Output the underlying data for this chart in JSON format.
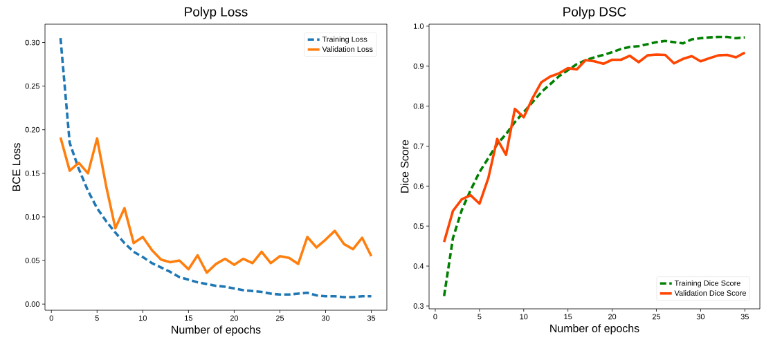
{
  "chart_data": [
    {
      "type": "line",
      "title": "Polyp Loss",
      "xlabel": "Number of epochs",
      "ylabel": "BCE Loss",
      "x": [
        1,
        2,
        3,
        4,
        5,
        6,
        7,
        8,
        9,
        10,
        11,
        12,
        13,
        14,
        15,
        16,
        17,
        18,
        19,
        20,
        21,
        22,
        23,
        24,
        25,
        26,
        27,
        28,
        29,
        30,
        31,
        32,
        33,
        34,
        35
      ],
      "series": [
        {
          "name": "Training Loss",
          "color": "#1f77b4",
          "line_style": "dashed",
          "values": [
            0.305,
            0.185,
            0.155,
            0.13,
            0.11,
            0.095,
            0.082,
            0.07,
            0.06,
            0.054,
            0.047,
            0.042,
            0.037,
            0.031,
            0.028,
            0.025,
            0.023,
            0.021,
            0.02,
            0.018,
            0.016,
            0.015,
            0.014,
            0.012,
            0.011,
            0.011,
            0.012,
            0.013,
            0.01,
            0.009,
            0.009,
            0.008,
            0.008,
            0.009,
            0.009
          ]
        },
        {
          "name": "Validation Loss",
          "color": "#ff7f0e",
          "line_style": "solid",
          "values": [
            0.191,
            0.153,
            0.162,
            0.15,
            0.19,
            0.135,
            0.087,
            0.11,
            0.07,
            0.077,
            0.062,
            0.051,
            0.048,
            0.05,
            0.04,
            0.056,
            0.036,
            0.046,
            0.052,
            0.045,
            0.052,
            0.047,
            0.06,
            0.047,
            0.055,
            0.053,
            0.046,
            0.077,
            0.065,
            0.074,
            0.084,
            0.069,
            0.063,
            0.076,
            0.055
          ]
        }
      ],
      "xlim": [
        -0.7,
        36.7
      ],
      "ylim": [
        -0.007,
        0.321
      ],
      "xticks": [
        0,
        5,
        10,
        15,
        20,
        25,
        30,
        35
      ],
      "yticks": [
        {
          "value": 0,
          "label": "0.00"
        },
        {
          "value": 0.05,
          "label": "0.05"
        },
        {
          "value": 0.1,
          "label": "0.10"
        },
        {
          "value": 0.15,
          "label": "0.15"
        },
        {
          "value": 0.2,
          "label": "0.20"
        },
        {
          "value": 0.25,
          "label": "0.25"
        },
        {
          "value": 0.3,
          "label": "0.30"
        }
      ],
      "grid": false,
      "legend": "top right",
      "marker": "none"
    },
    {
      "type": "line",
      "title": "Polyp DSC",
      "xlabel": "Number of epochs",
      "ylabel": "Dice Score",
      "x": [
        1,
        2,
        3,
        4,
        5,
        6,
        7,
        8,
        9,
        10,
        11,
        12,
        13,
        14,
        15,
        16,
        17,
        18,
        19,
        20,
        21,
        22,
        23,
        24,
        25,
        26,
        27,
        28,
        29,
        30,
        31,
        32,
        33,
        34,
        35
      ],
      "series": [
        {
          "name": "Training Dice Score",
          "color": "#008000",
          "line_style": "dashed",
          "values": [
            0.325,
            0.47,
            0.54,
            0.59,
            0.635,
            0.67,
            0.705,
            0.73,
            0.76,
            0.785,
            0.81,
            0.835,
            0.855,
            0.875,
            0.89,
            0.905,
            0.915,
            0.922,
            0.928,
            0.935,
            0.943,
            0.948,
            0.95,
            0.955,
            0.96,
            0.963,
            0.96,
            0.957,
            0.967,
            0.97,
            0.972,
            0.973,
            0.973,
            0.97,
            0.972
          ]
        },
        {
          "name": "Validation Dice Score",
          "color": "#ff4500",
          "line_style": "solid",
          "values": [
            0.46,
            0.538,
            0.567,
            0.577,
            0.556,
            0.62,
            0.718,
            0.678,
            0.793,
            0.772,
            0.82,
            0.86,
            0.874,
            0.882,
            0.895,
            0.892,
            0.915,
            0.912,
            0.906,
            0.916,
            0.916,
            0.926,
            0.91,
            0.927,
            0.929,
            0.928,
            0.907,
            0.918,
            0.925,
            0.912,
            0.92,
            0.927,
            0.928,
            0.922,
            0.934
          ]
        }
      ],
      "xlim": [
        -0.7,
        36.7
      ],
      "ylim": [
        0.293,
        1.005
      ],
      "xticks": [
        0,
        5,
        10,
        15,
        20,
        25,
        30,
        35
      ],
      "yticks": [
        {
          "value": 0.3,
          "label": "0.3"
        },
        {
          "value": 0.4,
          "label": "0.4"
        },
        {
          "value": 0.5,
          "label": "0.5"
        },
        {
          "value": 0.6,
          "label": "0.6"
        },
        {
          "value": 0.7,
          "label": "0.7"
        },
        {
          "value": 0.8,
          "label": "0.8"
        },
        {
          "value": 0.9,
          "label": "0.9"
        },
        {
          "value": 1.0,
          "label": "1.0"
        }
      ],
      "grid": false,
      "legend": "bottom right",
      "marker": "none"
    }
  ]
}
